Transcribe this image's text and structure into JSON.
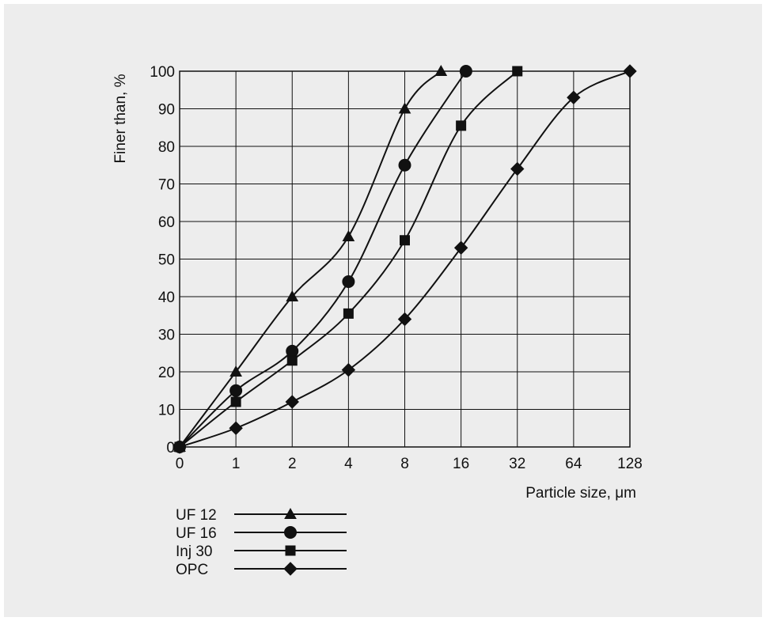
{
  "chart_data": {
    "type": "line",
    "title": "",
    "xlabel": "Particle size, μm",
    "ylabel": "Finer than, %",
    "x_ticks": [
      "0",
      "1",
      "2",
      "4",
      "8",
      "16",
      "32",
      "64",
      "128"
    ],
    "y_ticks": [
      "0",
      "10",
      "20",
      "30",
      "40",
      "50",
      "60",
      "70",
      "80",
      "90",
      "100"
    ],
    "ylim": [
      0,
      100
    ],
    "grid": true,
    "legend_position": "bottom-left, below plot",
    "series": [
      {
        "name": "UF 12",
        "marker": "triangle",
        "points": [
          {
            "x": "0",
            "y": 0
          },
          {
            "x": 1,
            "y": 20
          },
          {
            "x": 2,
            "y": 40
          },
          {
            "x": 4,
            "y": 56
          },
          {
            "x": 8,
            "y": 90
          },
          {
            "x": 12.5,
            "y": 100
          }
        ]
      },
      {
        "name": "UF 16",
        "marker": "circle",
        "points": [
          {
            "x": "0",
            "y": 0
          },
          {
            "x": 1,
            "y": 15
          },
          {
            "x": 2,
            "y": 25.5
          },
          {
            "x": 4,
            "y": 44
          },
          {
            "x": 8,
            "y": 75
          },
          {
            "x": 17,
            "y": 100
          }
        ]
      },
      {
        "name": "Inj 30",
        "marker": "square",
        "points": [
          {
            "x": "0",
            "y": 0
          },
          {
            "x": 1,
            "y": 12
          },
          {
            "x": 2,
            "y": 23
          },
          {
            "x": 4,
            "y": 35.5
          },
          {
            "x": 8,
            "y": 55
          },
          {
            "x": 16,
            "y": 85.5
          },
          {
            "x": 32,
            "y": 100
          }
        ]
      },
      {
        "name": "OPC",
        "marker": "diamond",
        "points": [
          {
            "x": "0",
            "y": 0
          },
          {
            "x": 1,
            "y": 5
          },
          {
            "x": 2,
            "y": 12
          },
          {
            "x": 4,
            "y": 20.5
          },
          {
            "x": 8,
            "y": 34
          },
          {
            "x": 16,
            "y": 53
          },
          {
            "x": 32,
            "y": 74
          },
          {
            "x": 64,
            "y": 93
          },
          {
            "x": 128,
            "y": 100
          }
        ]
      }
    ],
    "colors": {
      "background": "#ededed",
      "line": "#111111",
      "grid": "#111111"
    }
  }
}
